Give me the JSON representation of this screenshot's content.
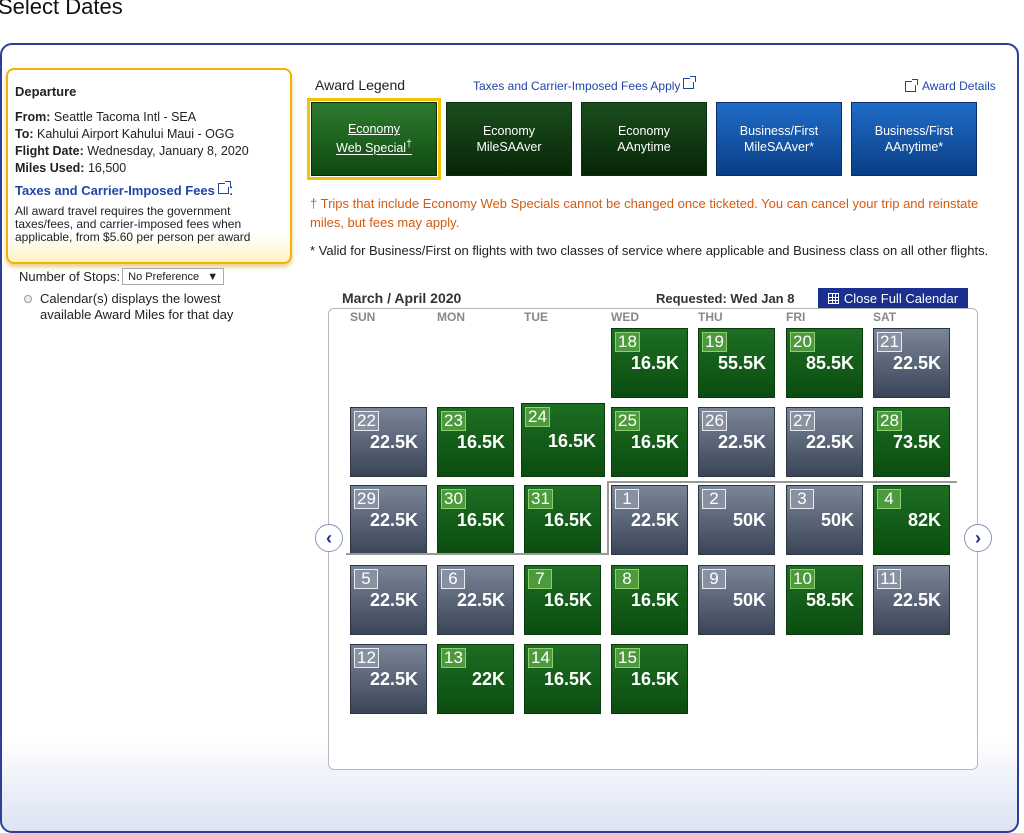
{
  "page_title": "Select Dates",
  "departure": {
    "title": "Departure",
    "from_label": "From:",
    "from": "Seattle Tacoma Intl - SEA",
    "to_label": "To:",
    "to": "Kahului Airport Kahului Maui - OGG",
    "date_label": "Flight Date:",
    "date": "Wednesday, January 8, 2020",
    "miles_label": "Miles Used:",
    "miles": "16,500",
    "tax_link": "Taxes and Carrier-Imposed Fees",
    "tax_colon": ":",
    "tax_note": "All award travel requires the government taxes/fees, and carrier-imposed fees when applicable, from $5.60 per person per award"
  },
  "stops": {
    "label": "Number of Stops:",
    "selected": "No Preference"
  },
  "calendar_note": "Calendar(s) displays the lowest available Award Miles for that day",
  "legend": {
    "title": "Award Legend",
    "fees_link": "Taxes and Carrier-Imposed Fees Apply",
    "details_link": "Award Details",
    "items": [
      {
        "line1": "Economy",
        "line2": "Web Special",
        "mark": "†"
      },
      {
        "line1": "Economy",
        "line2": "MileSAAver",
        "mark": ""
      },
      {
        "line1": "Economy",
        "line2": "AAnytime",
        "mark": ""
      },
      {
        "line1": "Business/First",
        "line2": "MileSAAver*",
        "mark": ""
      },
      {
        "line1": "Business/First",
        "line2": "AAnytime*",
        "mark": ""
      }
    ]
  },
  "notes": {
    "dagger": "† Trips that include Economy Web Specials cannot be changed once ticketed. You can cancel your trip and reinstate miles, but fees may apply.",
    "star": "* Valid for Business/First on flights with two classes of service where applicable and Business class on all other flights."
  },
  "calendar": {
    "month": "March / April 2020",
    "requested": "Requested: Wed Jan 8",
    "close_label": "Close Full Calendar",
    "days_of_week": [
      "SUN",
      "MON",
      "TUE",
      "WED",
      "THU",
      "FRI",
      "SAT"
    ],
    "weeks": [
      [
        null,
        null,
        null,
        {
          "day": "18",
          "miles": "16.5K",
          "status": "green"
        },
        {
          "day": "19",
          "miles": "55.5K",
          "status": "green"
        },
        {
          "day": "20",
          "miles": "85.5K",
          "status": "green"
        },
        {
          "day": "21",
          "miles": "22.5K",
          "status": "gray"
        }
      ],
      [
        {
          "day": "22",
          "miles": "22.5K",
          "status": "gray"
        },
        {
          "day": "23",
          "miles": "16.5K",
          "status": "green"
        },
        {
          "day": "24",
          "miles": "16.5K",
          "status": "green",
          "highlight": true
        },
        {
          "day": "25",
          "miles": "16.5K",
          "status": "green"
        },
        {
          "day": "26",
          "miles": "22.5K",
          "status": "gray"
        },
        {
          "day": "27",
          "miles": "22.5K",
          "status": "gray"
        },
        {
          "day": "28",
          "miles": "73.5K",
          "status": "green"
        }
      ],
      [
        {
          "day": "29",
          "miles": "22.5K",
          "status": "gray"
        },
        {
          "day": "30",
          "miles": "16.5K",
          "status": "green"
        },
        {
          "day": "31",
          "miles": "16.5K",
          "status": "green"
        },
        {
          "day": "1",
          "miles": "22.5K",
          "status": "gray"
        },
        {
          "day": "2",
          "miles": "50K",
          "status": "gray"
        },
        {
          "day": "3",
          "miles": "50K",
          "status": "gray"
        },
        {
          "day": "4",
          "miles": "82K",
          "status": "green"
        }
      ],
      [
        {
          "day": "5",
          "miles": "22.5K",
          "status": "gray"
        },
        {
          "day": "6",
          "miles": "22.5K",
          "status": "gray"
        },
        {
          "day": "7",
          "miles": "16.5K",
          "status": "green"
        },
        {
          "day": "8",
          "miles": "16.5K",
          "status": "green"
        },
        {
          "day": "9",
          "miles": "50K",
          "status": "gray"
        },
        {
          "day": "10",
          "miles": "58.5K",
          "status": "green"
        },
        {
          "day": "11",
          "miles": "22.5K",
          "status": "gray"
        }
      ],
      [
        {
          "day": "12",
          "miles": "22.5K",
          "status": "gray"
        },
        {
          "day": "13",
          "miles": "22K",
          "status": "green"
        },
        {
          "day": "14",
          "miles": "16.5K",
          "status": "green"
        },
        {
          "day": "15",
          "miles": "16.5K",
          "status": "green"
        },
        null,
        null,
        null
      ]
    ]
  }
}
